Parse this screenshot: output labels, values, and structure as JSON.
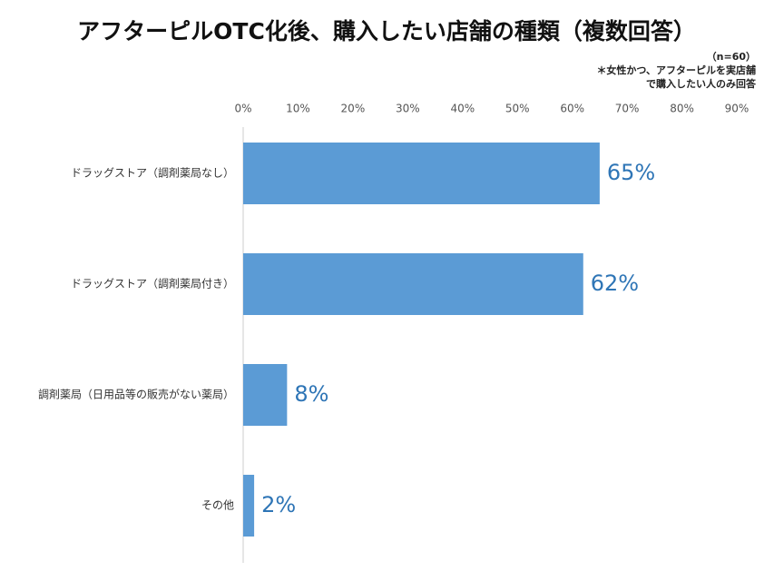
{
  "chart_data": {
    "type": "bar",
    "orientation": "horizontal",
    "title": "アフターピルOTC化後、購入したい店舗の種類（複数回答）",
    "notes": [
      "（n=60）",
      "＊女性かつ、アフターピルを実店舗",
      "で購入したい人のみ回答"
    ],
    "categories": [
      "ドラッグストア（調剤薬局なし）",
      "ドラッグストア（調剤薬局付き）",
      "調剤薬局（日用品等の販売がない薬局）",
      "その他"
    ],
    "values": [
      65,
      62,
      8,
      2
    ],
    "value_labels": [
      "65%",
      "62%",
      "8%",
      "2%"
    ],
    "color": "#5b9bd5",
    "label_color": "#2e75b6",
    "xlim": [
      0,
      90
    ],
    "xticks": [
      {
        "value": 0,
        "label": "0%"
      },
      {
        "value": 10,
        "label": "10%"
      },
      {
        "value": 20,
        "label": "20%"
      },
      {
        "value": 30,
        "label": "30%"
      },
      {
        "value": 40,
        "label": "40%"
      },
      {
        "value": 50,
        "label": "50%"
      },
      {
        "value": 60,
        "label": "60%"
      },
      {
        "value": 70,
        "label": "70%"
      },
      {
        "value": 80,
        "label": "80%"
      },
      {
        "value": 90,
        "label": "90%"
      }
    ],
    "grid": false
  }
}
